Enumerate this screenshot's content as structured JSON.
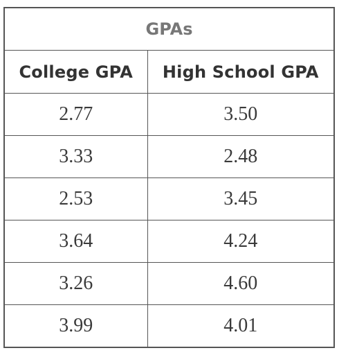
{
  "table": {
    "title": "GPAs",
    "headers": [
      "College GPA",
      "High School GPA"
    ],
    "rows": [
      [
        "2.77",
        "3.50"
      ],
      [
        "3.33",
        "2.48"
      ],
      [
        "2.53",
        "3.45"
      ],
      [
        "3.64",
        "4.24"
      ],
      [
        "3.26",
        "4.60"
      ],
      [
        "3.99",
        "4.01"
      ]
    ]
  },
  "chart_data": {
    "type": "table",
    "title": "GPAs",
    "columns": [
      "College GPA",
      "High School GPA"
    ],
    "rows": [
      [
        "2.77",
        "3.50"
      ],
      [
        "3.33",
        "2.48"
      ],
      [
        "2.53",
        "3.45"
      ],
      [
        "3.64",
        "4.24"
      ],
      [
        "3.26",
        "4.60"
      ],
      [
        "3.99",
        "4.01"
      ]
    ]
  }
}
